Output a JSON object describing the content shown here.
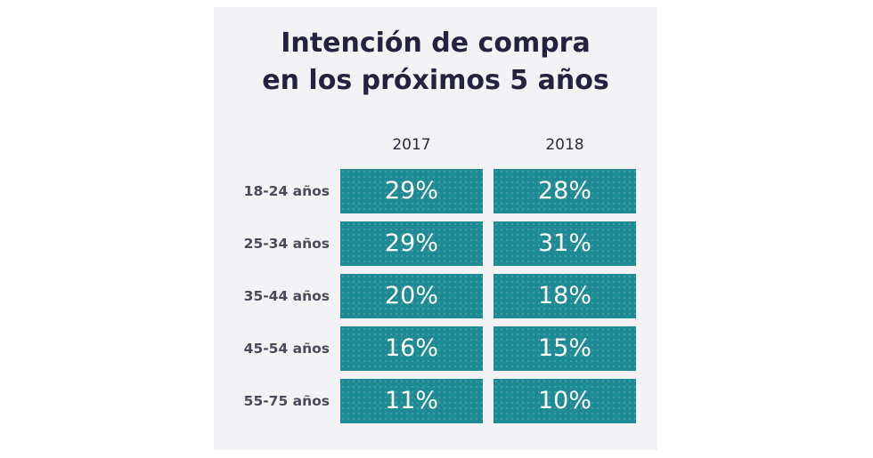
{
  "chart_data": {
    "type": "table",
    "title_lines": [
      "Intención de compra",
      "en los próximos 5 años"
    ],
    "columns": [
      "2017",
      "2018"
    ],
    "rows": [
      {
        "label": "18-24 años",
        "values": [
          "29%",
          "28%"
        ]
      },
      {
        "label": "25-34 años",
        "values": [
          "29%",
          "31%"
        ]
      },
      {
        "label": "35-44 años",
        "values": [
          "20%",
          "18%"
        ]
      },
      {
        "label": "45-54 años",
        "values": [
          "16%",
          "15%"
        ]
      },
      {
        "label": "55-75 años",
        "values": [
          "11%",
          "10%"
        ]
      }
    ],
    "colors": {
      "cell_fill": "#1e8a94",
      "title": "#23233f",
      "background": "#f3f3f6"
    }
  }
}
